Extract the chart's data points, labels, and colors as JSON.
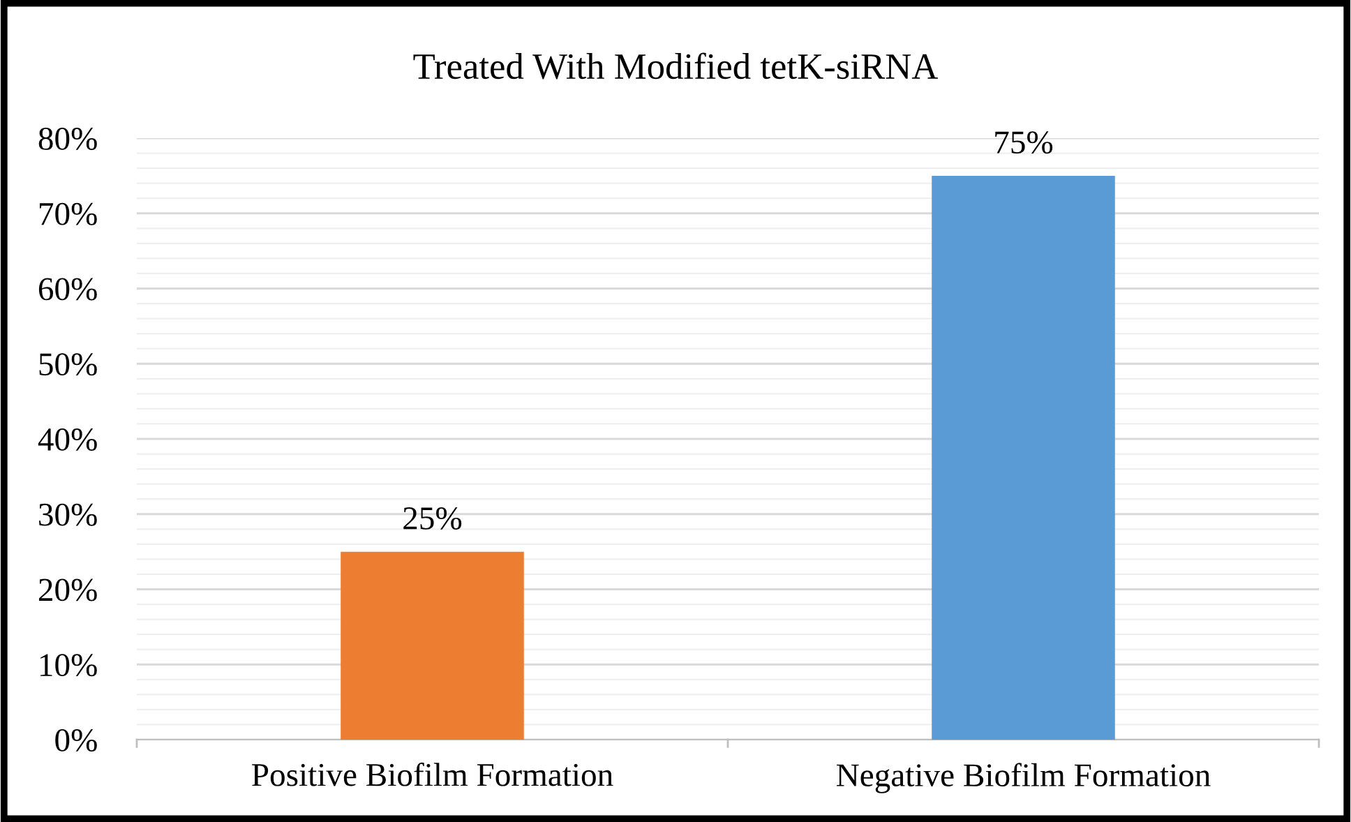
{
  "chart_data": {
    "type": "bar",
    "title": "Treated With Modified tetK-siRNA",
    "categories": [
      "Positive Biofilm Formation",
      "Negative Biofilm Formation"
    ],
    "values": [
      25,
      75
    ],
    "colors": [
      "#ed7d31",
      "#5b9bd5"
    ],
    "value_labels": [
      "25%",
      "75%"
    ],
    "ylim": [
      0,
      80
    ],
    "yticks": [
      {
        "value": 0,
        "label": "0%"
      },
      {
        "value": 2,
        "label": null
      },
      {
        "value": 4,
        "label": null
      },
      {
        "value": 6,
        "label": null
      },
      {
        "value": 8,
        "label": null
      },
      {
        "value": 10,
        "label": "10%"
      },
      {
        "value": 12,
        "label": null
      },
      {
        "value": 14,
        "label": null
      },
      {
        "value": 16,
        "label": null
      },
      {
        "value": 18,
        "label": null
      },
      {
        "value": 20,
        "label": "20%"
      },
      {
        "value": 22,
        "label": null
      },
      {
        "value": 24,
        "label": null
      },
      {
        "value": 26,
        "label": null
      },
      {
        "value": 28,
        "label": null
      },
      {
        "value": 30,
        "label": "30%"
      },
      {
        "value": 32,
        "label": null
      },
      {
        "value": 34,
        "label": null
      },
      {
        "value": 36,
        "label": null
      },
      {
        "value": 38,
        "label": null
      },
      {
        "value": 40,
        "label": "40%"
      },
      {
        "value": 42,
        "label": null
      },
      {
        "value": 44,
        "label": null
      },
      {
        "value": 46,
        "label": null
      },
      {
        "value": 48,
        "label": null
      },
      {
        "value": 50,
        "label": "50%"
      },
      {
        "value": 52,
        "label": null
      },
      {
        "value": 54,
        "label": null
      },
      {
        "value": 56,
        "label": null
      },
      {
        "value": 58,
        "label": null
      },
      {
        "value": 60,
        "label": "60%"
      },
      {
        "value": 62,
        "label": null
      },
      {
        "value": 64,
        "label": null
      },
      {
        "value": 66,
        "label": null
      },
      {
        "value": 68,
        "label": null
      },
      {
        "value": 70,
        "label": "70%"
      },
      {
        "value": 72,
        "label": null
      },
      {
        "value": 74,
        "label": null
      },
      {
        "value": 76,
        "label": null
      },
      {
        "value": 78,
        "label": null
      },
      {
        "value": 80,
        "label": "80%"
      }
    ],
    "grid": "y",
    "legend": false
  }
}
